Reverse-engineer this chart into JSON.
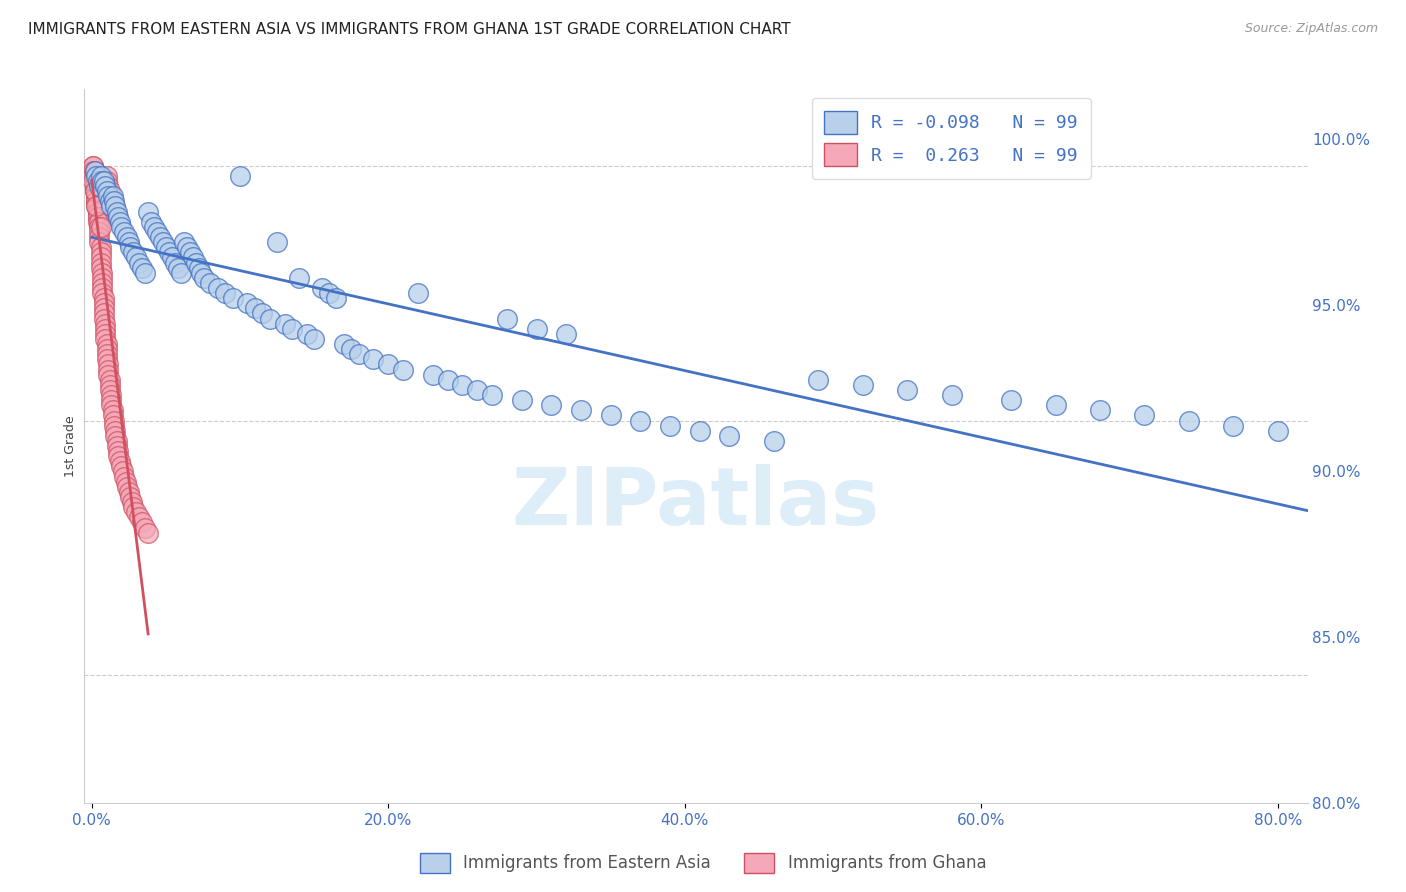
{
  "title": "IMMIGRANTS FROM EASTERN ASIA VS IMMIGRANTS FROM GHANA 1ST GRADE CORRELATION CHART",
  "source": "Source: ZipAtlas.com",
  "xlabel_ticks": [
    "0.0%",
    "20.0%",
    "40.0%",
    "60.0%",
    "80.0%"
  ],
  "ylabel_ticks": [
    "80.0%",
    "85.0%",
    "90.0%",
    "95.0%",
    "100.0%"
  ],
  "xlabel_tick_vals": [
    0.0,
    0.2,
    0.4,
    0.6,
    0.8
  ],
  "ylabel_tick_vals": [
    0.8,
    0.85,
    0.9,
    0.95,
    1.0
  ],
  "xlim": [
    -0.005,
    0.82
  ],
  "ylim": [
    0.875,
    1.015
  ],
  "ylabel": "1st Grade",
  "legend_labels": [
    "Immigrants from Eastern Asia",
    "Immigrants from Ghana"
  ],
  "R_blue": -0.098,
  "R_pink": 0.263,
  "N_blue": 99,
  "N_pink": 99,
  "blue_color": "#b8d0ea",
  "pink_color": "#f4a8b8",
  "blue_line_color": "#4472c4",
  "pink_line_color": "#d05060",
  "watermark_color": "#ddeef8",
  "scatter_blue": [
    [
      0.002,
      0.999
    ],
    [
      0.003,
      0.998
    ],
    [
      0.004,
      0.997
    ],
    [
      0.005,
      0.996
    ],
    [
      0.006,
      0.998
    ],
    [
      0.007,
      0.997
    ],
    [
      0.008,
      0.997
    ],
    [
      0.009,
      0.996
    ],
    [
      0.01,
      0.995
    ],
    [
      0.011,
      0.994
    ],
    [
      0.012,
      0.993
    ],
    [
      0.013,
      0.992
    ],
    [
      0.014,
      0.994
    ],
    [
      0.015,
      0.993
    ],
    [
      0.016,
      0.992
    ],
    [
      0.017,
      0.991
    ],
    [
      0.018,
      0.99
    ],
    [
      0.019,
      0.989
    ],
    [
      0.02,
      0.988
    ],
    [
      0.022,
      0.987
    ],
    [
      0.024,
      0.986
    ],
    [
      0.025,
      0.985
    ],
    [
      0.026,
      0.984
    ],
    [
      0.028,
      0.983
    ],
    [
      0.03,
      0.982
    ],
    [
      0.032,
      0.981
    ],
    [
      0.034,
      0.98
    ],
    [
      0.036,
      0.979
    ],
    [
      0.038,
      0.991
    ],
    [
      0.04,
      0.989
    ],
    [
      0.042,
      0.988
    ],
    [
      0.044,
      0.987
    ],
    [
      0.046,
      0.986
    ],
    [
      0.048,
      0.985
    ],
    [
      0.05,
      0.984
    ],
    [
      0.052,
      0.983
    ],
    [
      0.054,
      0.982
    ],
    [
      0.056,
      0.981
    ],
    [
      0.058,
      0.98
    ],
    [
      0.06,
      0.979
    ],
    [
      0.062,
      0.985
    ],
    [
      0.064,
      0.984
    ],
    [
      0.066,
      0.983
    ],
    [
      0.068,
      0.982
    ],
    [
      0.07,
      0.981
    ],
    [
      0.072,
      0.98
    ],
    [
      0.074,
      0.979
    ],
    [
      0.076,
      0.978
    ],
    [
      0.08,
      0.977
    ],
    [
      0.085,
      0.976
    ],
    [
      0.09,
      0.975
    ],
    [
      0.095,
      0.974
    ],
    [
      0.1,
      0.998
    ],
    [
      0.105,
      0.973
    ],
    [
      0.11,
      0.972
    ],
    [
      0.115,
      0.971
    ],
    [
      0.12,
      0.97
    ],
    [
      0.125,
      0.985
    ],
    [
      0.13,
      0.969
    ],
    [
      0.135,
      0.968
    ],
    [
      0.14,
      0.978
    ],
    [
      0.145,
      0.967
    ],
    [
      0.15,
      0.966
    ],
    [
      0.155,
      0.976
    ],
    [
      0.16,
      0.975
    ],
    [
      0.165,
      0.974
    ],
    [
      0.17,
      0.965
    ],
    [
      0.175,
      0.964
    ],
    [
      0.18,
      0.963
    ],
    [
      0.19,
      0.962
    ],
    [
      0.2,
      0.961
    ],
    [
      0.21,
      0.96
    ],
    [
      0.22,
      0.975
    ],
    [
      0.23,
      0.959
    ],
    [
      0.24,
      0.958
    ],
    [
      0.25,
      0.957
    ],
    [
      0.26,
      0.956
    ],
    [
      0.27,
      0.955
    ],
    [
      0.28,
      0.97
    ],
    [
      0.29,
      0.954
    ],
    [
      0.3,
      0.968
    ],
    [
      0.31,
      0.953
    ],
    [
      0.32,
      0.967
    ],
    [
      0.33,
      0.952
    ],
    [
      0.35,
      0.951
    ],
    [
      0.37,
      0.95
    ],
    [
      0.39,
      0.949
    ],
    [
      0.41,
      0.948
    ],
    [
      0.43,
      0.947
    ],
    [
      0.46,
      0.946
    ],
    [
      0.49,
      0.958
    ],
    [
      0.52,
      0.957
    ],
    [
      0.55,
      0.956
    ],
    [
      0.58,
      0.955
    ],
    [
      0.62,
      0.954
    ],
    [
      0.65,
      0.953
    ],
    [
      0.68,
      0.952
    ],
    [
      0.71,
      0.951
    ],
    [
      0.74,
      0.95
    ],
    [
      0.77,
      0.949
    ],
    [
      0.8,
      0.948
    ]
  ],
  "scatter_pink": [
    [
      0.001,
      1.0
    ],
    [
      0.001,
      1.0
    ],
    [
      0.001,
      0.999
    ],
    [
      0.001,
      0.998
    ],
    [
      0.001,
      0.998
    ],
    [
      0.002,
      0.997
    ],
    [
      0.002,
      0.997
    ],
    [
      0.002,
      0.996
    ],
    [
      0.002,
      0.996
    ],
    [
      0.002,
      0.995
    ],
    [
      0.003,
      0.995
    ],
    [
      0.003,
      0.994
    ],
    [
      0.003,
      0.994
    ],
    [
      0.003,
      0.993
    ],
    [
      0.003,
      0.993
    ],
    [
      0.003,
      0.992
    ],
    [
      0.004,
      0.992
    ],
    [
      0.004,
      0.991
    ],
    [
      0.004,
      0.991
    ],
    [
      0.004,
      0.99
    ],
    [
      0.004,
      0.99
    ],
    [
      0.004,
      0.989
    ],
    [
      0.005,
      0.989
    ],
    [
      0.005,
      0.988
    ],
    [
      0.005,
      0.987
    ],
    [
      0.005,
      0.986
    ],
    [
      0.005,
      0.985
    ],
    [
      0.006,
      0.984
    ],
    [
      0.006,
      0.983
    ],
    [
      0.006,
      0.982
    ],
    [
      0.006,
      0.981
    ],
    [
      0.006,
      0.98
    ],
    [
      0.007,
      0.979
    ],
    [
      0.007,
      0.978
    ],
    [
      0.007,
      0.977
    ],
    [
      0.007,
      0.976
    ],
    [
      0.007,
      0.975
    ],
    [
      0.008,
      0.974
    ],
    [
      0.008,
      0.973
    ],
    [
      0.008,
      0.972
    ],
    [
      0.008,
      0.971
    ],
    [
      0.008,
      0.97
    ],
    [
      0.009,
      0.969
    ],
    [
      0.009,
      0.968
    ],
    [
      0.009,
      0.967
    ],
    [
      0.009,
      0.966
    ],
    [
      0.01,
      0.965
    ],
    [
      0.01,
      0.964
    ],
    [
      0.01,
      0.963
    ],
    [
      0.01,
      0.962
    ],
    [
      0.011,
      0.961
    ],
    [
      0.011,
      0.96
    ],
    [
      0.011,
      0.959
    ],
    [
      0.012,
      0.958
    ],
    [
      0.012,
      0.957
    ],
    [
      0.012,
      0.956
    ],
    [
      0.013,
      0.955
    ],
    [
      0.013,
      0.954
    ],
    [
      0.013,
      0.953
    ],
    [
      0.014,
      0.952
    ],
    [
      0.014,
      0.951
    ],
    [
      0.015,
      0.95
    ],
    [
      0.015,
      0.949
    ],
    [
      0.016,
      0.948
    ],
    [
      0.016,
      0.947
    ],
    [
      0.017,
      0.946
    ],
    [
      0.017,
      0.945
    ],
    [
      0.018,
      0.944
    ],
    [
      0.018,
      0.943
    ],
    [
      0.019,
      0.942
    ],
    [
      0.02,
      0.941
    ],
    [
      0.021,
      0.94
    ],
    [
      0.022,
      0.939
    ],
    [
      0.023,
      0.938
    ],
    [
      0.024,
      0.937
    ],
    [
      0.025,
      0.936
    ],
    [
      0.026,
      0.935
    ],
    [
      0.027,
      0.934
    ],
    [
      0.028,
      0.933
    ],
    [
      0.03,
      0.932
    ],
    [
      0.032,
      0.931
    ],
    [
      0.034,
      0.93
    ],
    [
      0.036,
      0.929
    ],
    [
      0.038,
      0.928
    ],
    [
      0.01,
      0.998
    ],
    [
      0.01,
      0.997
    ],
    [
      0.011,
      0.996
    ],
    [
      0.012,
      0.995
    ],
    [
      0.013,
      0.994
    ],
    [
      0.014,
      0.993
    ],
    [
      0.015,
      0.992
    ],
    [
      0.016,
      0.991
    ],
    [
      0.002,
      0.999
    ],
    [
      0.003,
      0.998
    ],
    [
      0.004,
      0.997
    ],
    [
      0.005,
      0.996
    ],
    [
      0.001,
      0.997
    ],
    [
      0.002,
      0.995
    ],
    [
      0.003,
      0.992
    ],
    [
      0.006,
      0.988
    ]
  ]
}
